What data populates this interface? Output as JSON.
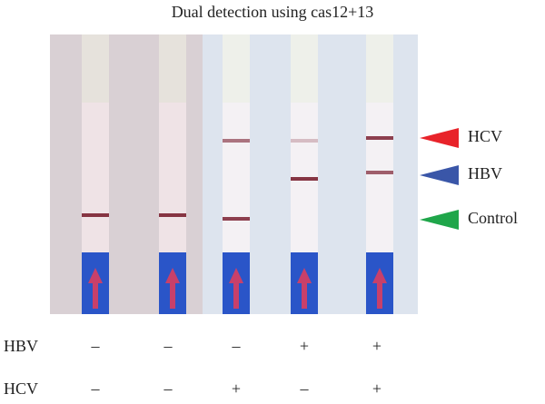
{
  "title": "Dual detection using cas12+13",
  "markers": [
    {
      "label": "HCV",
      "color": "#e8232a"
    },
    {
      "label": "HBV",
      "color": "#3a56a8"
    },
    {
      "label": "Control",
      "color": "#1fa64a"
    }
  ],
  "rows": [
    {
      "label": "HBV",
      "signs": [
        "–",
        "–",
        "–",
        "+",
        "+"
      ]
    },
    {
      "label": "HCV",
      "signs": [
        "–",
        "–",
        "+",
        "–",
        "+"
      ]
    }
  ]
}
